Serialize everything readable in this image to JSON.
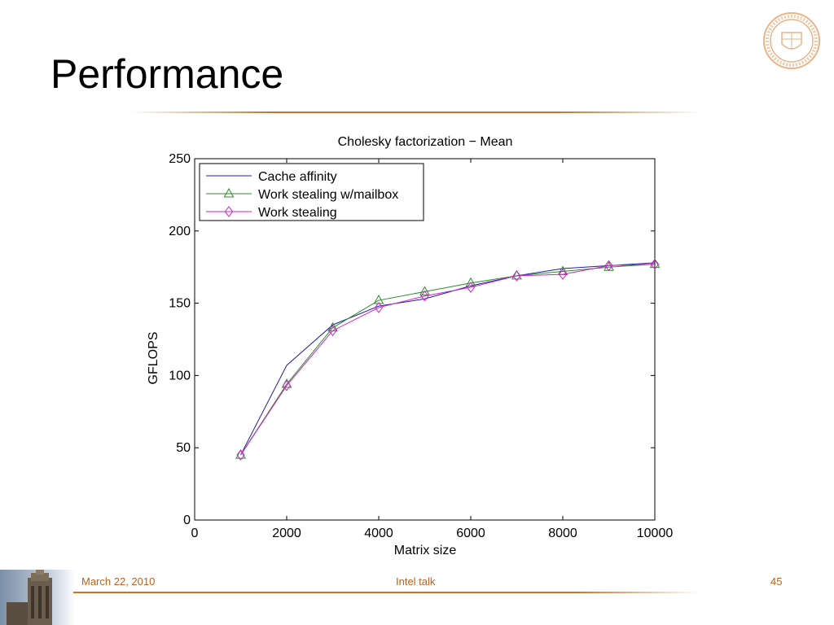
{
  "slide": {
    "title": "Performance",
    "footer": {
      "date": "March 22, 2010",
      "talk": "Intel talk",
      "page": "45"
    }
  },
  "colors": {
    "accent": "#c8742a",
    "footer_text": "#c0601a"
  },
  "chart_data": {
    "type": "line",
    "title": "Cholesky factorization − Mean",
    "xlabel": "Matrix size",
    "ylabel": "GFLOPS",
    "xlim": [
      0,
      10000
    ],
    "ylim": [
      0,
      250
    ],
    "xticks": [
      0,
      2000,
      4000,
      6000,
      8000,
      10000
    ],
    "yticks": [
      0,
      50,
      100,
      150,
      200,
      250
    ],
    "grid": false,
    "legend_position": "top-left",
    "x": [
      1000,
      2000,
      3000,
      4000,
      5000,
      6000,
      7000,
      8000,
      9000,
      10000
    ],
    "series": [
      {
        "name": "Cache affinity",
        "color": "#1f1fa0",
        "marker": "none",
        "values": [
          45,
          107,
          135,
          148,
          153,
          162,
          169,
          174,
          176,
          178
        ]
      },
      {
        "name": "Work stealing w/mailbox",
        "color": "#2e8b2e",
        "marker": "triangle",
        "values": [
          45,
          94,
          133,
          152,
          158,
          164,
          169,
          172,
          175,
          177
        ]
      },
      {
        "name": "Work stealing",
        "color": "#d020d0",
        "marker": "diamond",
        "values": [
          45,
          93,
          131,
          147,
          155,
          161,
          169,
          170,
          176,
          177
        ]
      }
    ]
  }
}
